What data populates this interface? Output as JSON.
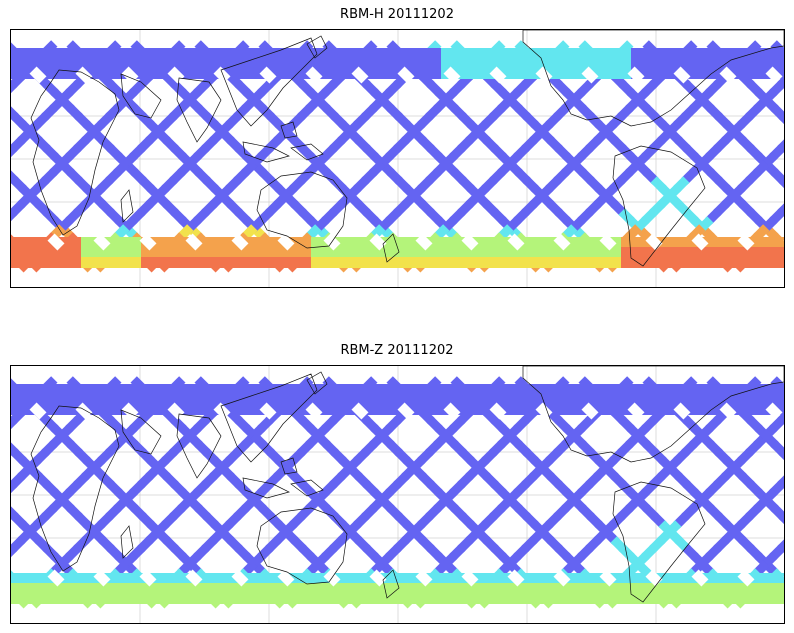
{
  "maps": [
    {
      "title": "RBM-H 20111202",
      "variant": "H",
      "colors": {
        "base": "#6464f2",
        "edge": "#5a9cf2",
        "cyan": "#62e6ef",
        "green": "#b4f47a",
        "yellow": "#f2e24c",
        "orange": "#f4a24c",
        "red": "#f2744c"
      }
    },
    {
      "title": "RBM-Z 20111202",
      "variant": "Z",
      "colors": {
        "base": "#6464f2",
        "edge": "#5a9cf2",
        "cyan": "#62e6ef",
        "green": "#b4f47a",
        "yellow": "#f2e24c",
        "orange": "#f4a24c",
        "red": "#f2744c"
      }
    }
  ]
}
